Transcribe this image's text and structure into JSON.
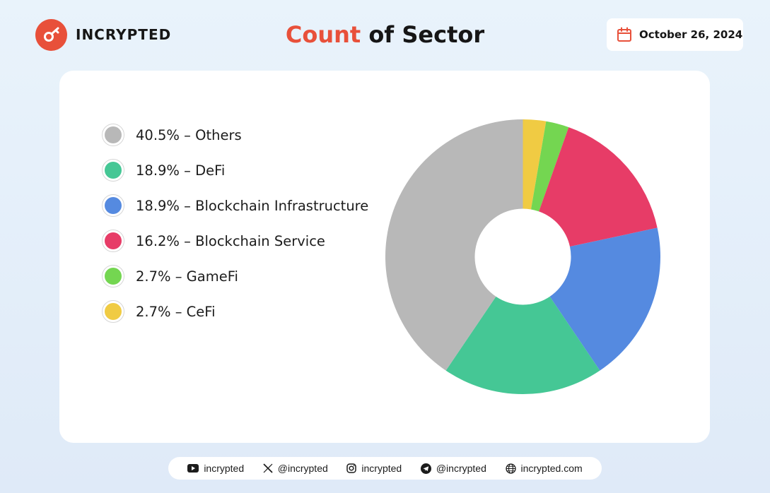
{
  "brand": {
    "name": "INCRYPTED",
    "icon": "key-icon",
    "color": "#e8503a"
  },
  "title": {
    "accent": "Count",
    "rest": " of Sector"
  },
  "date": {
    "text": "October 26, 2024",
    "icon": "calendar-icon"
  },
  "chart_data": {
    "type": "pie",
    "donut": true,
    "title": "Count of Sector",
    "legend_position": "left",
    "slices": [
      {
        "label": "40.5% – Others",
        "name": "Others",
        "value": 40.5,
        "color": "#b8b8b8"
      },
      {
        "label": "18.9% – DeFi",
        "name": "DeFi",
        "value": 18.9,
        "color": "#45c795"
      },
      {
        "label": "18.9% – Blockchain Infrastructure",
        "name": "Blockchain Infrastructure",
        "value": 18.9,
        "color": "#558ae0"
      },
      {
        "label": "16.2% – Blockchain Service",
        "name": "Blockchain Service",
        "value": 16.2,
        "color": "#e73c67"
      },
      {
        "label": "2.7% – GameFi",
        "name": "GameFi",
        "value": 2.7,
        "color": "#74d651"
      },
      {
        "label": "2.7% – CeFi",
        "name": "CeFi",
        "value": 2.7,
        "color": "#f0cb43"
      }
    ],
    "clockwise_draw_order": [
      "CeFi",
      "GameFi",
      "Blockchain Service",
      "Blockchain Infrastructure",
      "DeFi",
      "Others"
    ]
  },
  "footer": {
    "links": [
      {
        "icon": "youtube-icon",
        "text": "incrypted"
      },
      {
        "icon": "x-twitter-icon",
        "text": "@incrypted"
      },
      {
        "icon": "instagram-icon",
        "text": "incrypted"
      },
      {
        "icon": "telegram-icon",
        "text": "@incrypted"
      },
      {
        "icon": "globe-icon",
        "text": "incrypted.com"
      }
    ]
  }
}
